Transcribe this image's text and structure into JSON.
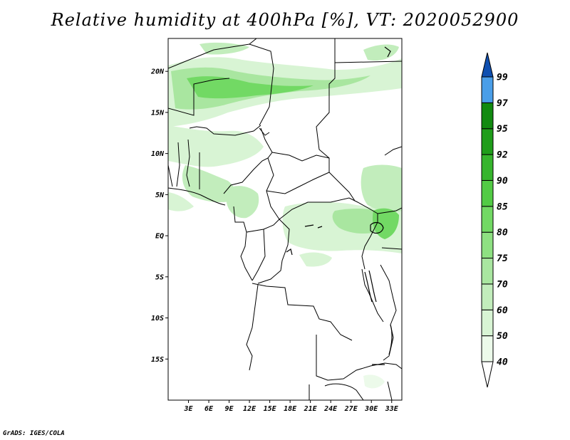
{
  "title": "Relative humidity at 400hPa [%], VT: 2020052900",
  "credit": "GrADS: IGES/COLA",
  "map": {
    "variable": "Relative humidity",
    "level": "400hPa",
    "units": "%",
    "valid_time": "2020052900",
    "lon_range": [
      0,
      34.5
    ],
    "lat_range": [
      -20,
      24
    ],
    "lat_ticks": [
      {
        "value": 20,
        "label": "20N"
      },
      {
        "value": 15,
        "label": "15N"
      },
      {
        "value": 10,
        "label": "10N"
      },
      {
        "value": 5,
        "label": "5N"
      },
      {
        "value": 0,
        "label": "EQ"
      },
      {
        "value": -5,
        "label": "5S"
      },
      {
        "value": -10,
        "label": "10S"
      },
      {
        "value": -15,
        "label": "15S"
      }
    ],
    "lon_ticks": [
      {
        "value": 3,
        "label": "3E"
      },
      {
        "value": 6,
        "label": "6E"
      },
      {
        "value": 9,
        "label": "9E"
      },
      {
        "value": 12,
        "label": "12E"
      },
      {
        "value": 15,
        "label": "15E"
      },
      {
        "value": 18,
        "label": "18E"
      },
      {
        "value": 21,
        "label": "21E"
      },
      {
        "value": 24,
        "label": "24E"
      },
      {
        "value": 27,
        "label": "27E"
      },
      {
        "value": 30,
        "label": "30E"
      },
      {
        "value": 33,
        "label": "33E"
      }
    ]
  },
  "colorbar": {
    "levels": [
      {
        "label": "40",
        "color": "#ecfaea"
      },
      {
        "label": "50",
        "color": "#d8f4d4"
      },
      {
        "label": "60",
        "color": "#c2edbc"
      },
      {
        "label": "70",
        "color": "#a9e6a0"
      },
      {
        "label": "75",
        "color": "#8ee082"
      },
      {
        "label": "80",
        "color": "#72d964"
      },
      {
        "label": "85",
        "color": "#52cb45"
      },
      {
        "label": "90",
        "color": "#36b52d"
      },
      {
        "label": "92",
        "color": "#1f9d1a"
      },
      {
        "label": "95",
        "color": "#118a10"
      },
      {
        "label": "97",
        "color": "#4a9ee8"
      },
      {
        "label": "99",
        "color": "#1c6dd0"
      }
    ],
    "top_color": "#0f4fb0"
  }
}
